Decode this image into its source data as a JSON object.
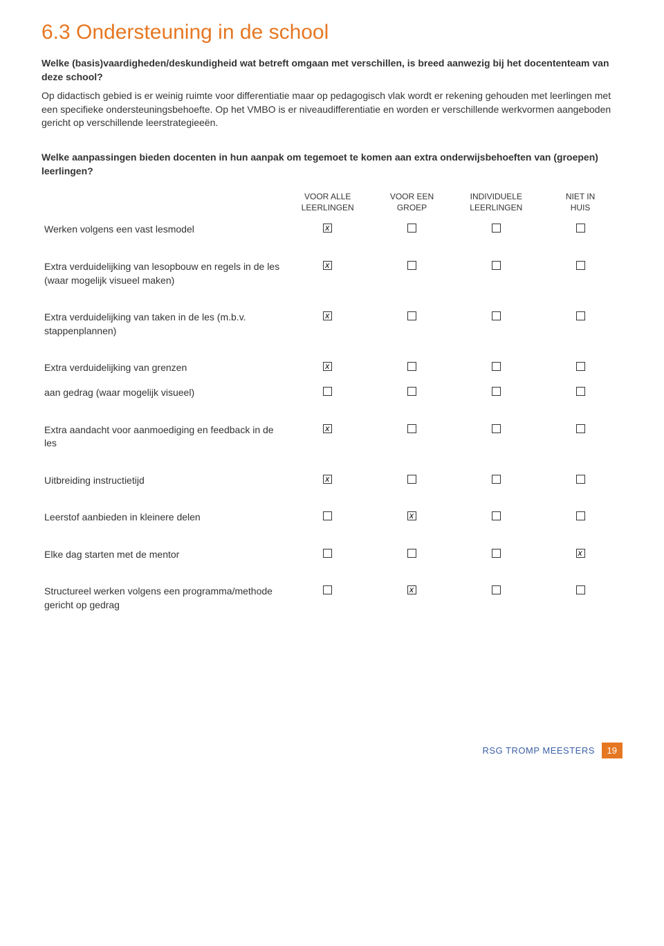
{
  "heading": "6.3 Ondersteuning in de school",
  "q1_bold": "Welke (basis)vaardigheden/deskundigheid wat betreft omgaan met verschillen, is breed aanwezig bij het docententeam van deze school?",
  "q1_answer": "Op didactisch gebied is er weinig ruimte voor differentiatie maar op pedagogisch vlak wordt er rekening gehouden met leerlingen met een specifieke ondersteuningsbehoefte. Op het VMBO is er niveaudifferentiatie en worden er verschillende werkvormen aangeboden gericht op verschillende leerstrategieeën.",
  "q2_bold": "Welke aanpassingen bieden docenten in hun aanpak om tegemoet te komen aan extra onderwijsbehoeften van (groepen) leerlingen?",
  "headers": {
    "c1": "VOOR ALLE LEERLINGEN",
    "c2": "VOOR EEN GROEP",
    "c3": "INDIVIDUELE LEERLINGEN",
    "c4": "NIET IN HUIS"
  },
  "rows": [
    {
      "label": "Werken volgens een vast lesmodel",
      "vals": [
        true,
        false,
        false,
        false
      ],
      "gap_after": true
    },
    {
      "label": "Extra verduidelijking van lesopbouw en regels in de les (waar mogelijk visueel maken)",
      "vals": [
        true,
        false,
        false,
        false
      ],
      "gap_after": true
    },
    {
      "label": "Extra verduidelijking van taken in de les (m.b.v. stappenplannen)",
      "vals": [
        true,
        false,
        false,
        false
      ],
      "gap_after": true
    },
    {
      "label": "Extra verduidelijking van grenzen",
      "vals": [
        true,
        false,
        false,
        false
      ],
      "gap_after": false
    },
    {
      "label": "aan gedrag (waar mogelijk visueel)",
      "vals": [
        false,
        false,
        false,
        false
      ],
      "gap_after": true
    },
    {
      "label": "Extra aandacht voor aanmoediging en feedback in de les",
      "vals": [
        true,
        false,
        false,
        false
      ],
      "gap_after": true
    },
    {
      "label": "Uitbreiding instructietijd",
      "vals": [
        true,
        false,
        false,
        false
      ],
      "gap_after": true
    },
    {
      "label": "Leerstof aanbieden in kleinere delen",
      "vals": [
        false,
        true,
        false,
        false
      ],
      "gap_after": true
    },
    {
      "label": "Elke dag starten met de mentor",
      "vals": [
        false,
        false,
        false,
        true
      ],
      "gap_after": true
    },
    {
      "label": "Structureel werken volgens een programma/methode gericht op gedrag",
      "vals": [
        false,
        true,
        false,
        false
      ],
      "gap_after": false
    }
  ],
  "footer_text": "RSG TROMP MEESTERS",
  "page_number": "19"
}
